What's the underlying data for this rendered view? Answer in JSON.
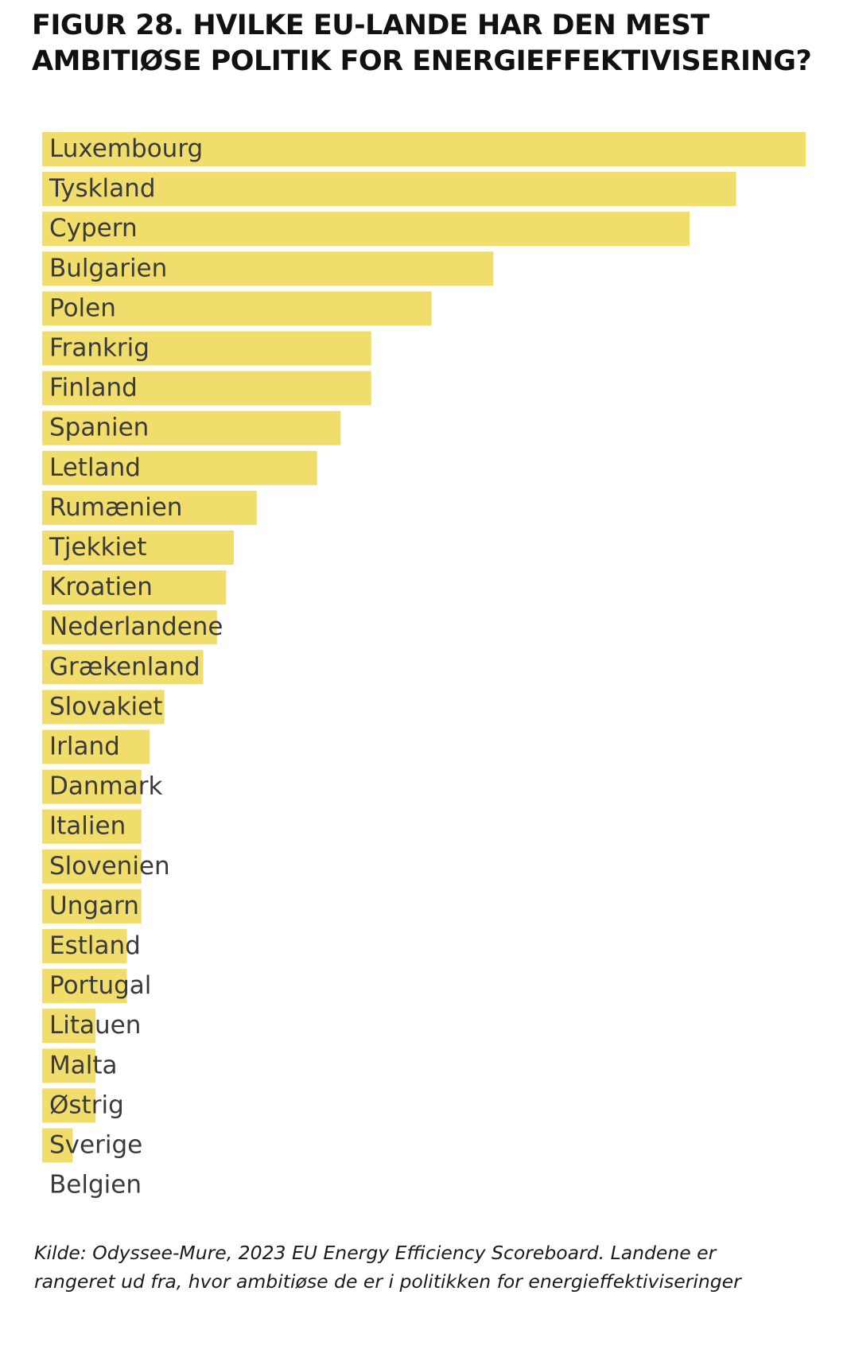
{
  "title_lines": [
    "FIGUR 28. HVILKE EU-LANDE HAR DEN MEST",
    "AMBITIØSE POLITIK FOR ENERGIEFFEKTIVISERING?"
  ],
  "source_lines": [
    "Kilde: Odyssee-Mure, 2023 EU Energy Efficiency Scoreboard. Landene er",
    "rangeret ud fra, hvor ambitiøse de er i politikken for energieffektiviseringer"
  ],
  "colors": {
    "bar": "#f0dd6b",
    "label": "#3a3a3a",
    "title": "#111111"
  },
  "chart_data": {
    "type": "bar",
    "orientation": "horizontal",
    "categories": [
      "Luxembourg",
      "Tyskland",
      "Cypern",
      "Bulgarien",
      "Polen",
      "Frankrig",
      "Finland",
      "Spanien",
      "Letland",
      "Rumænien",
      "Tjekkiet",
      "Kroatien",
      "Nederlandene",
      "Grækenland",
      "Slovakiet",
      "Irland",
      "Danmark",
      "Italien",
      "Slovenien",
      "Ungarn",
      "Estland",
      "Portugal",
      "Litauen",
      "Malta",
      "Østrig",
      "Sverige",
      "Belgien"
    ],
    "values": [
      100,
      90.9,
      84.8,
      59.1,
      51.0,
      43.1,
      43.1,
      39.1,
      36.0,
      28.1,
      25.1,
      24.1,
      22.9,
      21.1,
      16.0,
      14.1,
      13.0,
      13.0,
      13.0,
      13.0,
      11.1,
      11.1,
      7.0,
      7.0,
      7.0,
      4.0,
      0
    ],
    "xlim": [
      0,
      100
    ],
    "grid": false,
    "legend": "none",
    "labels_inside_bars": true
  }
}
